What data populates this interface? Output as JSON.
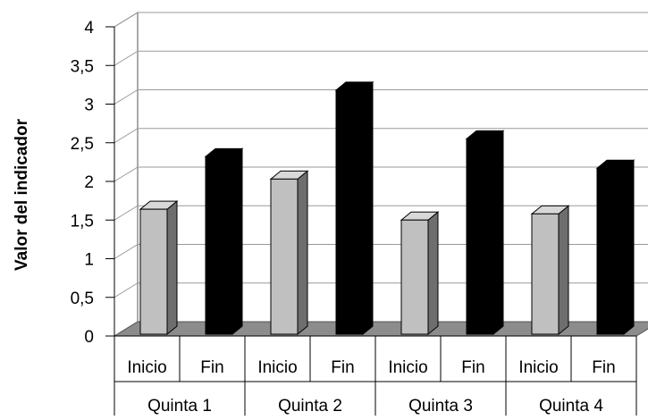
{
  "chart_data": {
    "type": "bar",
    "ylabel": "Valor del indicador",
    "xlabel": "",
    "ylim": [
      0,
      4
    ],
    "yticks": [
      "0",
      "0,5",
      "1",
      "1,5",
      "2",
      "2,5",
      "3",
      "3,5",
      "4"
    ],
    "grid": true,
    "style": "3d-columns",
    "groups": [
      "Quinta 1",
      "Quinta 2",
      "Quinta 3",
      "Quinta 4"
    ],
    "categories": [
      "Inicio",
      "Fin",
      "Inicio",
      "Fin",
      "Inicio",
      "Fin",
      "Inicio",
      "Fin"
    ],
    "values": [
      1.64,
      2.32,
      2.03,
      3.18,
      1.5,
      2.55,
      1.58,
      2.17
    ],
    "colors": {
      "inicio": "#c0c0c0",
      "fin": "#000000"
    }
  }
}
